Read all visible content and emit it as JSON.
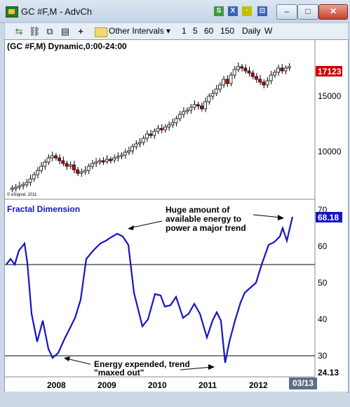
{
  "window": {
    "title": "GC #F,M - AdvCh"
  },
  "toolbar": {
    "icons": [
      "link-icon",
      "chain-icon",
      "copy-icon",
      "properties-icon",
      "add-icon",
      "folder-icon"
    ],
    "other_intervals": "Other Intervals ▾",
    "intervals": [
      "1",
      "5",
      "60",
      "150",
      "Daily",
      "W"
    ]
  },
  "price_panel": {
    "header": "(GC #F,M) Dynamic,0:00-24:00",
    "axis_labels": [
      "15000",
      "10000"
    ],
    "last_price": "17123",
    "copyright": "© eSignal, 2011"
  },
  "indicator_panel": {
    "title": "Fractal Dimension",
    "axis_labels": [
      "70",
      "60",
      "50",
      "40",
      "30"
    ],
    "last_value": "68.18",
    "footer_value": "24.13",
    "annotation_top": [
      "Huge amount of",
      "available energy to",
      "power a major trend"
    ],
    "annotation_bottom": [
      "Energy expended, trend",
      "\"maxed out\""
    ],
    "colors": {
      "line": "#1414c8",
      "title": "#1414c8",
      "badge": "#1414c8"
    }
  },
  "time_axis": {
    "labels": [
      "2008",
      "2009",
      "2010",
      "2011",
      "2012"
    ],
    "scroll_label": "03/13"
  },
  "colors": {
    "up_candle": "#ffffff",
    "down_candle": "#cc0000",
    "last_price_badge": "#cc0000"
  }
}
